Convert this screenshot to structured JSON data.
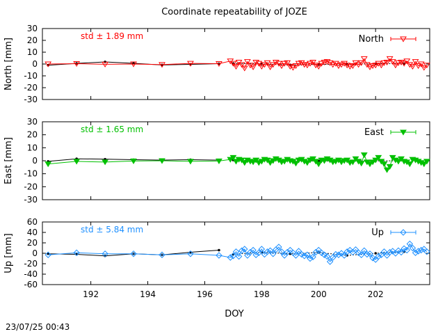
{
  "chart_data": {
    "type": "line",
    "title": "Coordinate repeatability of JOZE",
    "xlabel": "DOY",
    "timestamp": "23/07/25 00:43",
    "xlim": [
      190.3,
      203.9
    ],
    "xticks": [
      192,
      194,
      196,
      198,
      200,
      202
    ],
    "panels": [
      {
        "name": "north",
        "ylabel": "North [mm]",
        "ylim": [
          -30,
          30
        ],
        "yticks": [
          -30,
          -20,
          -10,
          0,
          10,
          20,
          30
        ],
        "std_label": "std ± 1.89 mm",
        "legend": "North",
        "color": "#ff0000",
        "marker": "triangle-down-open",
        "daily": {
          "x": [
            190.5,
            191.5,
            192.5,
            193.5,
            194.5,
            195.5,
            196.5
          ],
          "y": [
            -1.0,
            0.5,
            1.8,
            0.6,
            -0.8,
            -0.3,
            0.3
          ]
        },
        "daily2": {
          "x": [
            197.0,
            198.0,
            199.0,
            200.0,
            201.0,
            202.0,
            203.0
          ],
          "y": [
            0.5,
            0.1,
            -0.7,
            -0.3,
            -0.4,
            0.3,
            0.4
          ]
        },
        "series": {
          "x": [
            190.5,
            191.5,
            192.5,
            193.5,
            194.5,
            195.5,
            196.5,
            196.9,
            197.0,
            197.1,
            197.2,
            197.3,
            197.4,
            197.5,
            197.6,
            197.7,
            197.8,
            197.9,
            198.0,
            198.1,
            198.2,
            198.3,
            198.4,
            198.5,
            198.6,
            198.7,
            198.8,
            198.9,
            199.0,
            199.1,
            199.2,
            199.3,
            199.4,
            199.5,
            199.6,
            199.7,
            199.8,
            199.9,
            200.0,
            200.1,
            200.2,
            200.3,
            200.4,
            200.5,
            200.6,
            200.7,
            200.8,
            200.9,
            201.0,
            201.1,
            201.2,
            201.3,
            201.4,
            201.5,
            201.6,
            201.7,
            201.8,
            201.9,
            202.0,
            202.1,
            202.2,
            202.3,
            202.4,
            202.5,
            202.6,
            202.7,
            202.8,
            202.9,
            203.0,
            203.1,
            203.2,
            203.3,
            203.4,
            203.5,
            203.6,
            203.7,
            203.8
          ],
          "y": [
            0.0,
            0.3,
            -0.2,
            0.0,
            -0.5,
            0.5,
            0.3,
            2.5,
            0.5,
            -2.0,
            1.5,
            -0.5,
            -3.5,
            2.0,
            -1.0,
            -2.5,
            1.5,
            0.5,
            -2.0,
            -0.5,
            1.0,
            -2.5,
            -0.5,
            1.5,
            0.5,
            -1.5,
            0.5,
            1.0,
            -2.0,
            -3.0,
            -1.5,
            0.5,
            1.0,
            -0.5,
            -1.0,
            0.5,
            1.5,
            -1.0,
            -2.0,
            0.5,
            1.5,
            2.0,
            1.0,
            -0.5,
            0.5,
            -1.5,
            -0.5,
            0.5,
            -1.0,
            -2.0,
            -1.5,
            1.0,
            -0.5,
            1.0,
            4.5,
            -0.5,
            -2.5,
            -1.5,
            -1.0,
            0.5,
            -1.0,
            1.0,
            1.5,
            4.5,
            2.0,
            -1.0,
            1.0,
            1.5,
            0.5,
            2.5,
            -0.5,
            -2.0,
            2.0,
            -1.5,
            0.0,
            -3.0,
            -1.0
          ]
        }
      },
      {
        "name": "east",
        "ylabel": "East [mm]",
        "ylim": [
          -30,
          30
        ],
        "yticks": [
          -30,
          -20,
          -10,
          0,
          10,
          20,
          30
        ],
        "std_label": "std ± 1.65 mm",
        "legend": "East",
        "color": "#00c000",
        "marker": "triangle-down-filled",
        "daily": {
          "x": [
            190.5,
            191.5,
            192.5,
            193.5,
            194.5,
            195.5,
            196.5
          ],
          "y": [
            -0.5,
            1.5,
            1.2,
            0.8,
            0.5,
            0.8,
            0.5
          ]
        },
        "daily2": {
          "x": [
            197.0,
            198.0,
            199.0,
            200.0,
            201.0,
            202.0,
            203.0
          ],
          "y": [
            0.5,
            -0.1,
            0.2,
            -0.2,
            0.1,
            -0.1,
            0.0
          ]
        },
        "series": {
          "x": [
            190.5,
            191.5,
            192.5,
            193.5,
            194.5,
            195.5,
            196.5,
            196.9,
            197.0,
            197.1,
            197.2,
            197.3,
            197.4,
            197.5,
            197.6,
            197.7,
            197.8,
            197.9,
            198.0,
            198.1,
            198.2,
            198.3,
            198.4,
            198.5,
            198.6,
            198.7,
            198.8,
            198.9,
            199.0,
            199.1,
            199.2,
            199.3,
            199.4,
            199.5,
            199.6,
            199.7,
            199.8,
            199.9,
            200.0,
            200.1,
            200.2,
            200.3,
            200.4,
            200.5,
            200.6,
            200.7,
            200.8,
            200.9,
            201.0,
            201.1,
            201.2,
            201.3,
            201.4,
            201.5,
            201.6,
            201.7,
            201.8,
            201.9,
            202.0,
            202.1,
            202.2,
            202.3,
            202.4,
            202.5,
            202.6,
            202.7,
            202.8,
            202.9,
            203.0,
            203.1,
            203.2,
            203.3,
            203.4,
            203.5,
            203.6,
            203.7,
            203.8
          ],
          "y": [
            -2.5,
            -0.5,
            -1.0,
            -0.2,
            0.0,
            -0.5,
            -0.2,
            1.0,
            2.5,
            -0.5,
            1.0,
            0.5,
            -1.5,
            0.5,
            -0.5,
            -1.0,
            0.5,
            -1.5,
            -0.5,
            1.0,
            0.5,
            -1.5,
            0.0,
            1.5,
            0.5,
            -1.0,
            -0.5,
            1.0,
            0.0,
            -0.5,
            -2.0,
            0.5,
            1.0,
            -0.5,
            -1.5,
            0.5,
            1.5,
            -0.5,
            -2.5,
            0.5,
            0.0,
            1.5,
            0.5,
            -1.0,
            -0.5,
            0.5,
            -1.0,
            0.0,
            0.5,
            -1.5,
            -1.0,
            1.5,
            -0.5,
            -2.0,
            4.5,
            -1.0,
            -2.5,
            -1.0,
            0.5,
            2.5,
            -0.5,
            -2.5,
            -7.0,
            -4.5,
            2.5,
            0.5,
            -0.5,
            1.5,
            -0.5,
            -1.0,
            -2.5,
            1.0,
            0.5,
            -0.5,
            -1.5,
            -2.5,
            -0.5
          ]
        }
      },
      {
        "name": "up",
        "ylabel": "Up [mm]",
        "ylim": [
          -60,
          60
        ],
        "yticks": [
          -60,
          -40,
          -20,
          0,
          20,
          40,
          60
        ],
        "std_label": "std ± 5.84 mm",
        "legend": "Up",
        "color": "#1e90ff",
        "marker": "diamond-open",
        "daily": {
          "x": [
            190.5,
            191.5,
            192.5,
            193.5,
            194.5,
            195.5,
            196.5
          ],
          "y": [
            -1.0,
            -2.0,
            -5.0,
            -1.0,
            -3.0,
            2.0,
            6.0
          ]
        },
        "daily2": {
          "x": [
            197.0,
            198.0,
            199.0,
            200.0,
            201.0,
            202.0,
            203.0
          ],
          "y": [
            -2.0,
            2.0,
            -1.0,
            1.5,
            -4.0,
            0.0,
            3.0
          ]
        },
        "series": {
          "x": [
            190.5,
            191.5,
            192.5,
            193.5,
            194.5,
            195.5,
            196.5,
            196.9,
            197.0,
            197.1,
            197.2,
            197.3,
            197.4,
            197.5,
            197.6,
            197.7,
            197.8,
            197.9,
            198.0,
            198.1,
            198.2,
            198.3,
            198.4,
            198.5,
            198.6,
            198.7,
            198.8,
            198.9,
            199.0,
            199.1,
            199.2,
            199.3,
            199.4,
            199.5,
            199.6,
            199.7,
            199.8,
            199.9,
            200.0,
            200.1,
            200.2,
            200.3,
            200.4,
            200.5,
            200.6,
            200.7,
            200.8,
            200.9,
            201.0,
            201.1,
            201.2,
            201.3,
            201.4,
            201.5,
            201.6,
            201.7,
            201.8,
            201.9,
            202.0,
            202.1,
            202.2,
            202.3,
            202.4,
            202.5,
            202.6,
            202.7,
            202.8,
            202.9,
            203.0,
            203.1,
            203.2,
            203.3,
            203.4,
            203.5,
            203.6,
            203.7,
            203.8
          ],
          "y": [
            -3.0,
            1.0,
            -1.0,
            -1.0,
            -3.0,
            -1.0,
            -4.0,
            -8.0,
            -5.0,
            3.0,
            -6.0,
            5.0,
            8.0,
            -4.0,
            2.0,
            6.0,
            -3.0,
            1.0,
            8.0,
            -2.0,
            3.0,
            5.0,
            -1.0,
            7.0,
            12.0,
            3.0,
            -4.0,
            2.0,
            6.0,
            1.0,
            -4.0,
            4.0,
            -2.0,
            -5.0,
            -3.0,
            -10.0,
            -7.0,
            2.0,
            6.0,
            1.0,
            -3.0,
            -6.0,
            -16.0,
            -8.0,
            -2.0,
            -3.0,
            0.0,
            -4.0,
            3.0,
            6.0,
            2.0,
            7.0,
            1.0,
            -3.0,
            5.0,
            -2.0,
            -1.0,
            -9.0,
            -12.0,
            -6.0,
            -3.0,
            3.0,
            -4.0,
            2.0,
            4.0,
            0.0,
            5.0,
            2.0,
            9.0,
            6.0,
            18.0,
            10.0,
            1.0,
            4.0,
            6.0,
            8.0,
            3.0
          ]
        }
      }
    ]
  }
}
